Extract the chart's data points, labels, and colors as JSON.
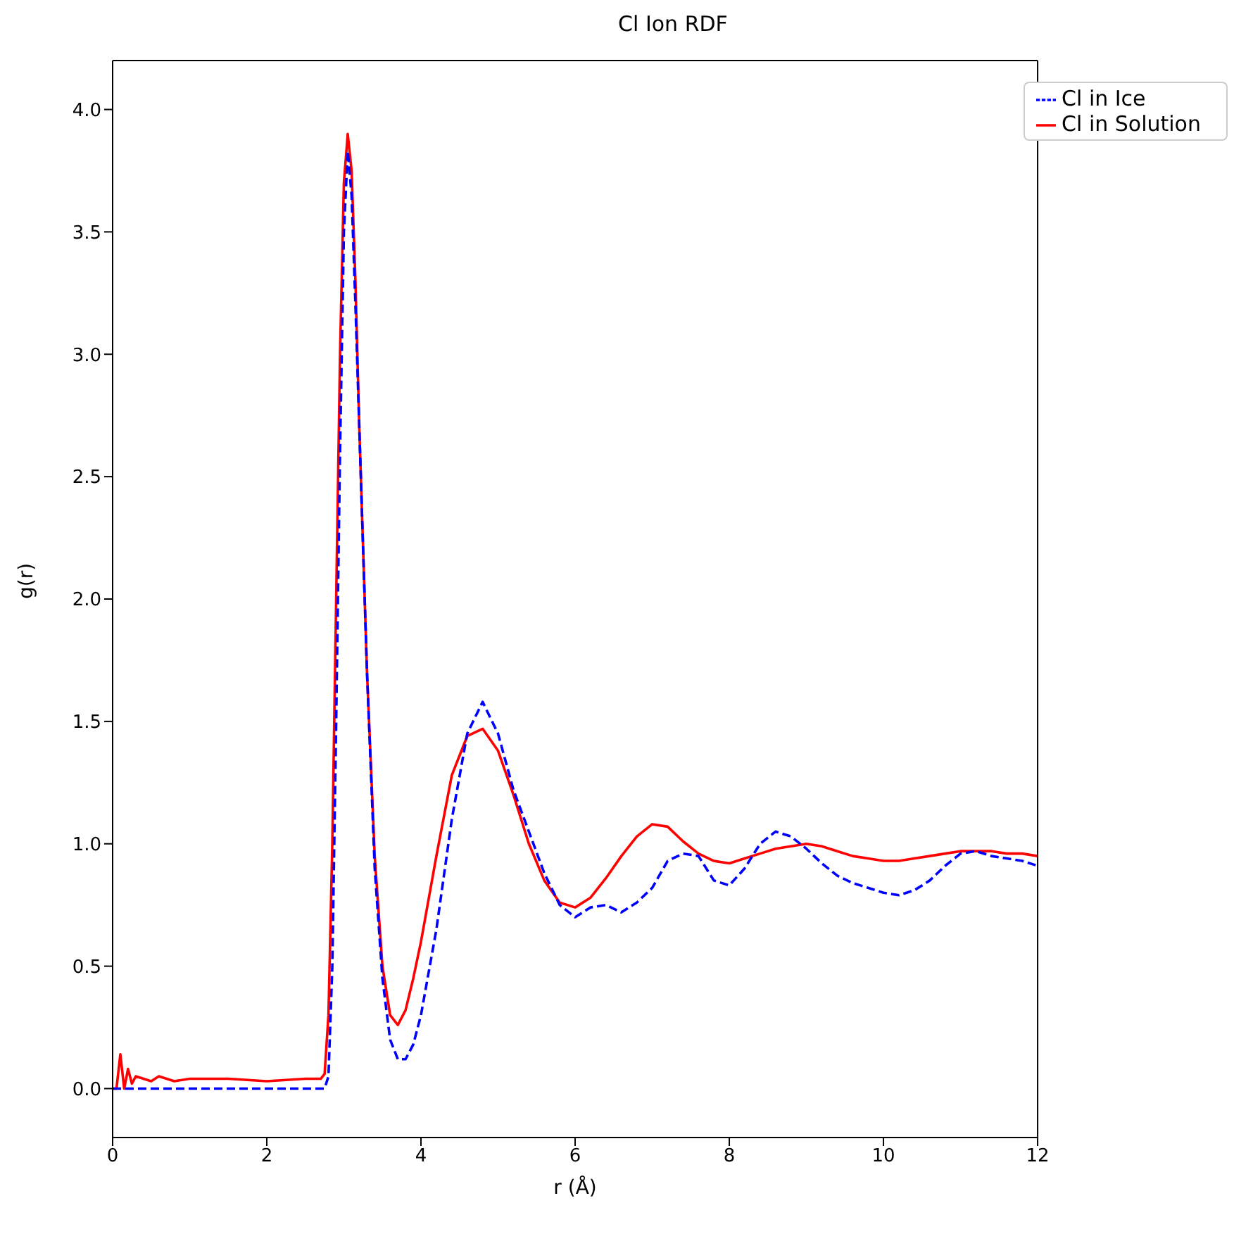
{
  "chart_data": {
    "type": "line",
    "title": "Cl Ion RDF",
    "xlabel": "r (Å)",
    "ylabel": "g(r)",
    "x": [
      0,
      0.05,
      0.1,
      0.15,
      0.2,
      0.25,
      0.3,
      0.4,
      0.5,
      0.6,
      0.8,
      1.0,
      1.5,
      2.0,
      2.5,
      2.7,
      2.75,
      2.8,
      2.85,
      2.9,
      2.95,
      3.0,
      3.05,
      3.1,
      3.15,
      3.2,
      3.3,
      3.4,
      3.5,
      3.6,
      3.7,
      3.8,
      3.9,
      4.0,
      4.2,
      4.4,
      4.6,
      4.8,
      5.0,
      5.2,
      5.4,
      5.6,
      5.8,
      6.0,
      6.2,
      6.4,
      6.6,
      6.8,
      7.0,
      7.2,
      7.4,
      7.6,
      7.8,
      8.0,
      8.2,
      8.4,
      8.6,
      8.8,
      9.0,
      9.2,
      9.4,
      9.6,
      9.8,
      10.0,
      10.2,
      10.4,
      10.6,
      10.8,
      11.0,
      11.2,
      11.4,
      11.6,
      11.8,
      12.0
    ],
    "series": [
      {
        "name": "Cl in Solution",
        "color": "#ff0000",
        "line_style": "solid",
        "values": [
          0,
          0,
          0.14,
          0,
          0.08,
          0.02,
          0.05,
          0.04,
          0.03,
          0.05,
          0.03,
          0.04,
          0.04,
          0.03,
          0.04,
          0.04,
          0.06,
          0.3,
          1.0,
          2.0,
          3.0,
          3.7,
          3.9,
          3.75,
          3.3,
          2.7,
          1.7,
          0.95,
          0.5,
          0.3,
          0.26,
          0.32,
          0.45,
          0.6,
          0.95,
          1.28,
          1.44,
          1.47,
          1.38,
          1.2,
          1.0,
          0.85,
          0.76,
          0.74,
          0.78,
          0.86,
          0.95,
          1.03,
          1.08,
          1.07,
          1.01,
          0.96,
          0.93,
          0.92,
          0.94,
          0.96,
          0.98,
          0.99,
          1.0,
          0.99,
          0.97,
          0.95,
          0.94,
          0.93,
          0.93,
          0.94,
          0.95,
          0.96,
          0.97,
          0.97,
          0.97,
          0.96,
          0.96,
          0.95
        ]
      },
      {
        "name": "Cl in Ice",
        "color": "#0000ff",
        "line_style": "dashed",
        "values": [
          0,
          0,
          0,
          0,
          0,
          0,
          0,
          0,
          0,
          0,
          0,
          0,
          0,
          0,
          0,
          0,
          0,
          0.05,
          0.5,
          1.5,
          2.6,
          3.5,
          3.83,
          3.65,
          3.2,
          2.7,
          1.7,
          0.9,
          0.45,
          0.2,
          0.12,
          0.12,
          0.18,
          0.3,
          0.65,
          1.1,
          1.45,
          1.58,
          1.45,
          1.22,
          1.05,
          0.88,
          0.75,
          0.7,
          0.74,
          0.75,
          0.72,
          0.76,
          0.82,
          0.93,
          0.96,
          0.95,
          0.85,
          0.83,
          0.9,
          1.0,
          1.05,
          1.03,
          0.98,
          0.92,
          0.87,
          0.84,
          0.82,
          0.8,
          0.79,
          0.81,
          0.85,
          0.91,
          0.96,
          0.97,
          0.95,
          0.94,
          0.93,
          0.91
        ]
      }
    ],
    "xlim": [
      0,
      12
    ],
    "xticks": [
      0,
      2,
      4,
      6,
      8,
      10,
      12
    ],
    "ylim": [
      -0.2,
      4.2
    ],
    "yticks": [
      {
        "value": 0,
        "label": "0.0"
      },
      {
        "value": 0.5,
        "label": "0.5"
      },
      {
        "value": 1,
        "label": "1.0"
      },
      {
        "value": 1.5,
        "label": "1.5"
      },
      {
        "value": 2,
        "label": "2.0"
      },
      {
        "value": 2.5,
        "label": "2.5"
      },
      {
        "value": 3,
        "label": "3.0"
      },
      {
        "value": 3.5,
        "label": "3.5"
      },
      {
        "value": 4,
        "label": "4.0"
      }
    ],
    "legend": "top right",
    "marker": "none",
    "grid": false
  }
}
